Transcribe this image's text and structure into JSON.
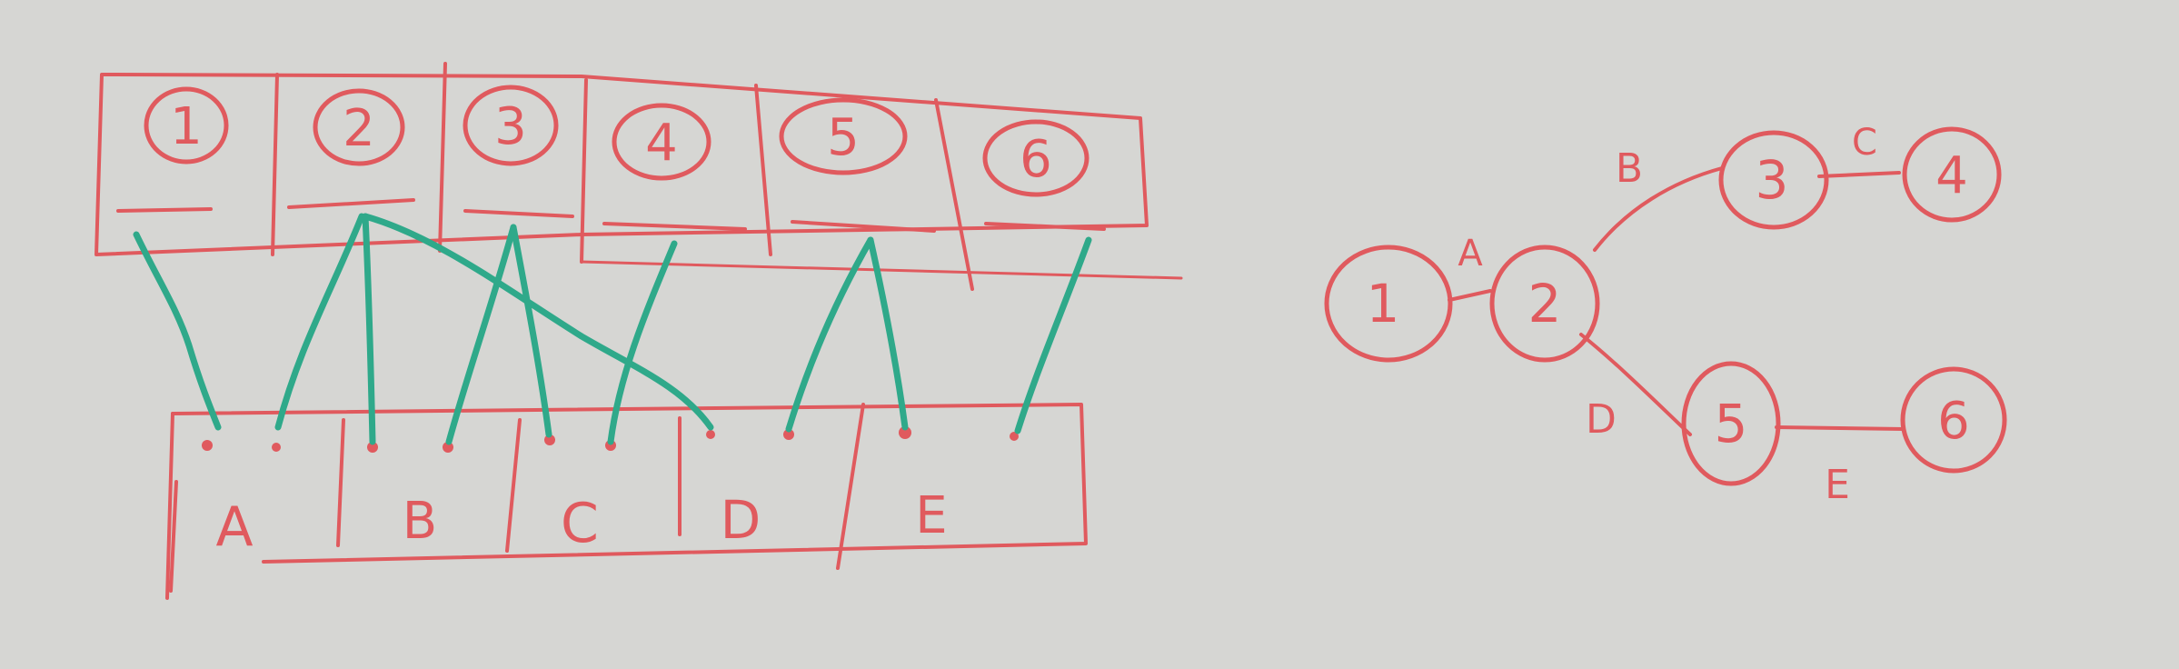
{
  "colors": {
    "board": "#d6d6d3",
    "red_marker": "#e05a5e",
    "green_marker": "#2fa98a"
  },
  "top_array": {
    "cells": [
      {
        "label": "1"
      },
      {
        "label": "2"
      },
      {
        "label": "3"
      },
      {
        "label": "4"
      },
      {
        "label": "5"
      },
      {
        "label": "6"
      }
    ]
  },
  "bottom_array": {
    "cells": [
      {
        "label": "A"
      },
      {
        "label": "B"
      },
      {
        "label": "C"
      },
      {
        "label": "D"
      },
      {
        "label": "E"
      }
    ]
  },
  "links": [
    {
      "from": "1",
      "to": "A"
    },
    {
      "from": "2",
      "to": "A"
    },
    {
      "from": "2",
      "to": "B"
    },
    {
      "from": "2",
      "to": "D"
    },
    {
      "from": "3",
      "to": "B"
    },
    {
      "from": "3",
      "to": "C"
    },
    {
      "from": "4",
      "to": "C"
    },
    {
      "from": "5",
      "to": "D"
    },
    {
      "from": "5",
      "to": "E"
    },
    {
      "from": "6",
      "to": "E"
    }
  ],
  "graph": {
    "nodes": [
      {
        "id": "n1",
        "label": "1"
      },
      {
        "id": "n2",
        "label": "2"
      },
      {
        "id": "n3",
        "label": "3"
      },
      {
        "id": "n4",
        "label": "4"
      },
      {
        "id": "n5",
        "label": "5"
      },
      {
        "id": "n6",
        "label": "6"
      }
    ],
    "edges": [
      {
        "from": "1",
        "to": "2",
        "label": "A"
      },
      {
        "from": "2",
        "to": "3",
        "label": "B"
      },
      {
        "from": "3",
        "to": "4",
        "label": "C"
      },
      {
        "from": "2",
        "to": "5",
        "label": "D"
      },
      {
        "from": "5",
        "to": "6",
        "label": "E"
      }
    ]
  }
}
